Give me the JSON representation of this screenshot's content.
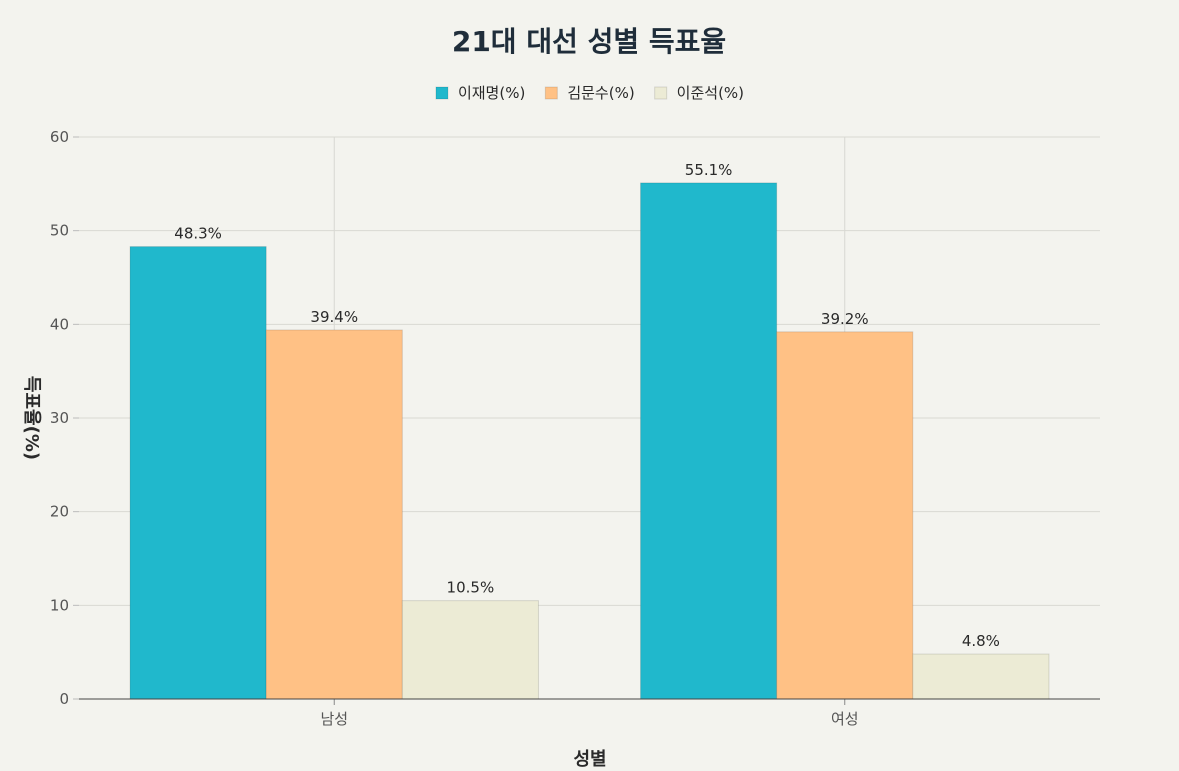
{
  "chart_data": {
    "type": "bar",
    "title": "21대 대선 성별 득표율",
    "xlabel": "성별",
    "ylabel": "득표율(%)",
    "categories": [
      "남성",
      "여성"
    ],
    "ylim": [
      0,
      60
    ],
    "yticks": [
      0,
      10,
      20,
      30,
      40,
      50,
      60
    ],
    "grid": true,
    "legend_position": "top-center",
    "series": [
      {
        "name": "이재명(%)",
        "values": [
          48.3,
          55.1
        ],
        "labels": [
          "48.3%",
          "55.1%"
        ],
        "color": "#20b8cc"
      },
      {
        "name": "김문수(%)",
        "values": [
          39.4,
          39.2
        ],
        "labels": [
          "39.4%",
          "39.2%"
        ],
        "color": "#ffc185"
      },
      {
        "name": "이준석(%)",
        "values": [
          10.5,
          4.8
        ],
        "labels": [
          "10.5%",
          "4.8%"
        ],
        "color": "#ecebd5"
      }
    ]
  }
}
